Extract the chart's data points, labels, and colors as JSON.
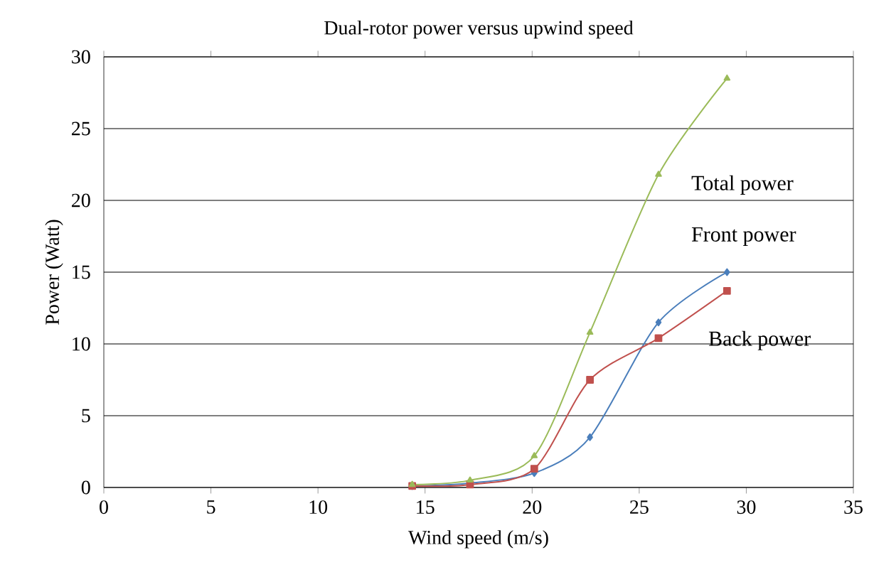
{
  "chart_data": {
    "type": "line",
    "title": "Dual-rotor power versus upwind speed",
    "xlabel": "Wind speed (m/s)",
    "ylabel": "Power (Watt)",
    "x": [
      14.4,
      17.1,
      20.1,
      22.7,
      25.9,
      29.1
    ],
    "series": [
      {
        "name": "Front power",
        "color": "#4a7ebb",
        "marker": "diamond",
        "values": [
          0.1,
          0.3,
          1.0,
          3.5,
          11.5,
          15.0
        ]
      },
      {
        "name": "Back power",
        "color": "#c0504d",
        "marker": "square",
        "values": [
          0.1,
          0.2,
          1.3,
          7.5,
          10.4,
          13.7
        ]
      },
      {
        "name": "Total power",
        "color": "#9bbb59",
        "marker": "triangle",
        "values": [
          0.2,
          0.5,
          2.2,
          10.8,
          21.8,
          28.5
        ]
      }
    ],
    "xlim": [
      0,
      35
    ],
    "ylim": [
      0,
      30
    ],
    "xticks": [
      0,
      5,
      10,
      15,
      20,
      25,
      30,
      35
    ],
    "yticks": [
      0,
      5,
      10,
      15,
      20,
      25,
      30
    ],
    "grid": "y",
    "legend": false
  }
}
